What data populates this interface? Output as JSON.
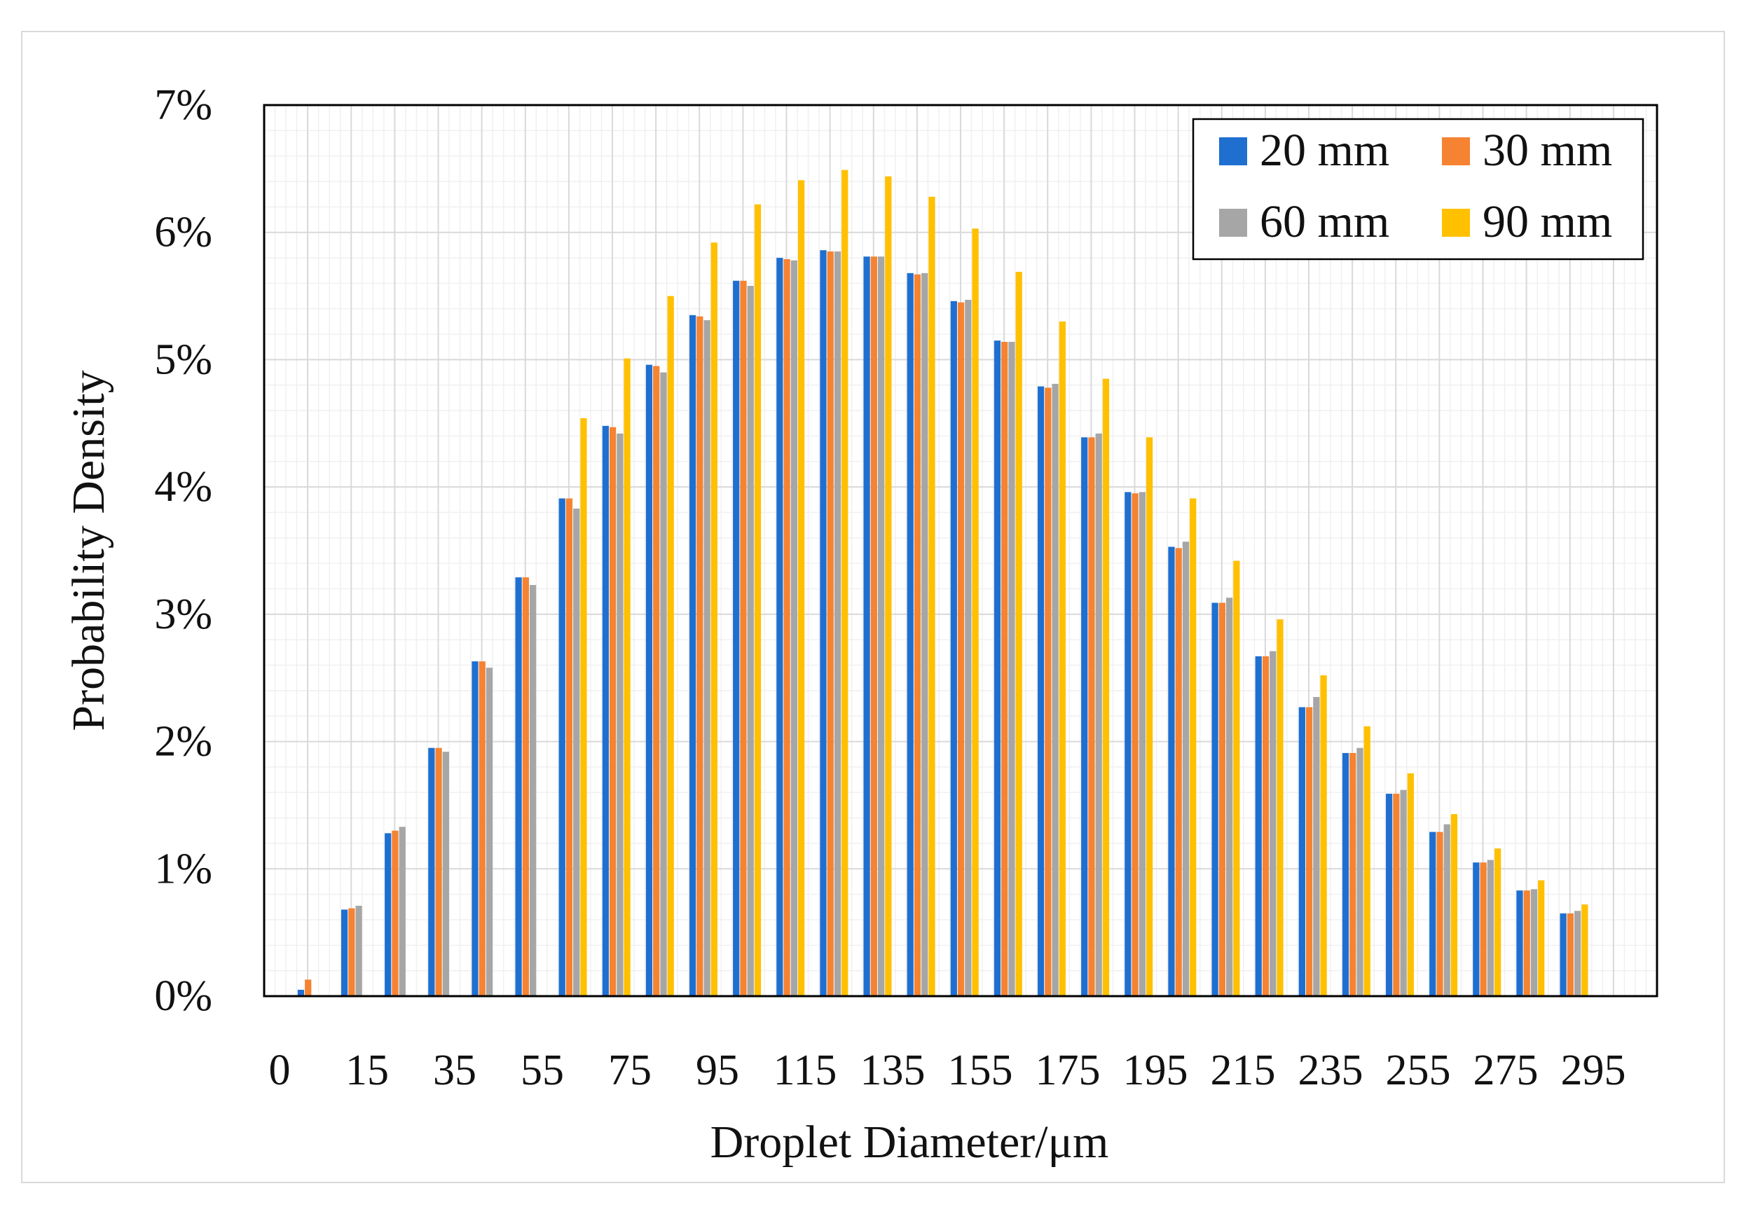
{
  "chart_data": {
    "type": "bar",
    "title": "",
    "xlabel": "Droplet Diameter/μm",
    "ylabel": "Probability Density",
    "ylim": [
      0,
      7
    ],
    "y_unit": "%",
    "y_ticks": [
      0,
      1,
      2,
      3,
      4,
      5,
      6,
      7
    ],
    "y_tick_labels": [
      "0%",
      "1%",
      "2%",
      "3%",
      "4%",
      "5%",
      "6%",
      "7%"
    ],
    "x_tick_labels": [
      "0",
      "15",
      "35",
      "55",
      "75",
      "95",
      "115",
      "135",
      "155",
      "175",
      "195",
      "215",
      "235",
      "255",
      "275",
      "295"
    ],
    "grid": true,
    "legend_position": "top-right",
    "series": [
      {
        "name": "20 mm",
        "color": "#1f6fd1",
        "values": [
          0.05,
          0.68,
          1.28,
          1.95,
          2.63,
          3.29,
          3.91,
          4.48,
          4.96,
          5.35,
          5.62,
          5.8,
          5.86,
          5.81,
          5.68,
          5.46,
          5.15,
          4.79,
          4.39,
          3.96,
          3.53,
          3.09,
          2.67,
          2.27,
          1.91,
          1.59,
          1.29,
          1.05,
          0.83,
          0.65
        ]
      },
      {
        "name": "30 mm",
        "color": "#f58332",
        "values": [
          0.13,
          0.69,
          1.3,
          1.95,
          2.63,
          3.29,
          3.91,
          4.47,
          4.95,
          5.34,
          5.62,
          5.79,
          5.85,
          5.81,
          5.67,
          5.45,
          5.14,
          4.78,
          4.39,
          3.95,
          3.52,
          3.09,
          2.67,
          2.27,
          1.91,
          1.59,
          1.29,
          1.05,
          0.83,
          0.65
        ]
      },
      {
        "name": "60 mm",
        "color": "#a6a6a6",
        "values": [
          0,
          0.71,
          1.33,
          1.92,
          2.58,
          3.23,
          3.83,
          4.42,
          4.9,
          5.31,
          5.58,
          5.78,
          5.85,
          5.81,
          5.68,
          5.47,
          5.14,
          4.81,
          4.42,
          3.96,
          3.57,
          3.13,
          2.71,
          2.35,
          1.95,
          1.62,
          1.35,
          1.07,
          0.84,
          0.67
        ]
      },
      {
        "name": "90 mm",
        "color": "#ffc000",
        "values": [
          0,
          0,
          0,
          0,
          0,
          0,
          4.54,
          5.01,
          5.5,
          5.92,
          6.22,
          6.41,
          6.49,
          6.44,
          6.28,
          6.03,
          5.69,
          5.3,
          4.85,
          4.39,
          3.91,
          3.42,
          2.96,
          2.52,
          2.12,
          1.75,
          1.43,
          1.16,
          0.91,
          0.72
        ]
      }
    ]
  }
}
